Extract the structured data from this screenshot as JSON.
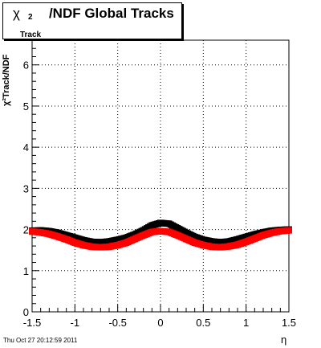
{
  "title": {
    "chi": "χ",
    "superscript": "2",
    "subscript": "Track",
    "rest": "/NDF  Global Tracks"
  },
  "y_axis_label": "χ²Track/NDF",
  "x_axis_label": "η",
  "timestamp": "Thu Oct 27 20:12:59 2011",
  "chart_data": {
    "type": "scatter",
    "title": "χ²Track/NDF  Global Tracks",
    "xlabel": "η",
    "ylabel": "χ²Track/NDF",
    "xlim": [
      -1.5,
      1.5
    ],
    "ylim": [
      0,
      6.6
    ],
    "x_ticks": [
      "-1.5",
      "-1",
      "-0.5",
      "0",
      "0.5",
      "1",
      "1.5"
    ],
    "y_ticks": [
      "0",
      "1",
      "2",
      "3",
      "4",
      "5",
      "6"
    ],
    "grid": true,
    "series": [
      {
        "color": "#000000",
        "marker": "square",
        "x": [
          -1.5,
          -1.4,
          -1.3,
          -1.2,
          -1.1,
          -1.0,
          -0.9,
          -0.8,
          -0.7,
          -0.6,
          -0.5,
          -0.4,
          -0.3,
          -0.2,
          -0.1,
          0.0,
          0.1,
          0.2,
          0.3,
          0.4,
          0.5,
          0.6,
          0.7,
          0.8,
          0.9,
          1.0,
          1.1,
          1.2,
          1.3,
          1.4,
          1.5
        ],
        "y": [
          1.97,
          1.98,
          1.96,
          1.92,
          1.86,
          1.8,
          1.74,
          1.7,
          1.69,
          1.71,
          1.75,
          1.8,
          1.88,
          1.98,
          2.1,
          2.16,
          2.14,
          2.03,
          1.92,
          1.82,
          1.75,
          1.71,
          1.69,
          1.71,
          1.76,
          1.82,
          1.88,
          1.93,
          1.97,
          1.99,
          2.0
        ]
      },
      {
        "color": "#ff0000",
        "marker": "square",
        "x": [
          -1.5,
          -1.4,
          -1.3,
          -1.2,
          -1.1,
          -1.0,
          -0.9,
          -0.8,
          -0.7,
          -0.6,
          -0.5,
          -0.4,
          -0.3,
          -0.2,
          -0.1,
          0.0,
          0.1,
          0.2,
          0.3,
          0.4,
          0.5,
          0.6,
          0.7,
          0.8,
          0.9,
          1.0,
          1.1,
          1.2,
          1.3,
          1.4,
          1.5
        ],
        "y": [
          1.95,
          1.93,
          1.89,
          1.83,
          1.76,
          1.68,
          1.62,
          1.58,
          1.57,
          1.58,
          1.62,
          1.68,
          1.77,
          1.86,
          1.94,
          1.96,
          1.94,
          1.86,
          1.77,
          1.68,
          1.62,
          1.58,
          1.57,
          1.59,
          1.63,
          1.7,
          1.78,
          1.86,
          1.92,
          1.96,
          1.98
        ]
      }
    ],
    "colors": {
      "frame": "#000000",
      "grid": "#000000",
      "background": "#ffffff"
    }
  }
}
